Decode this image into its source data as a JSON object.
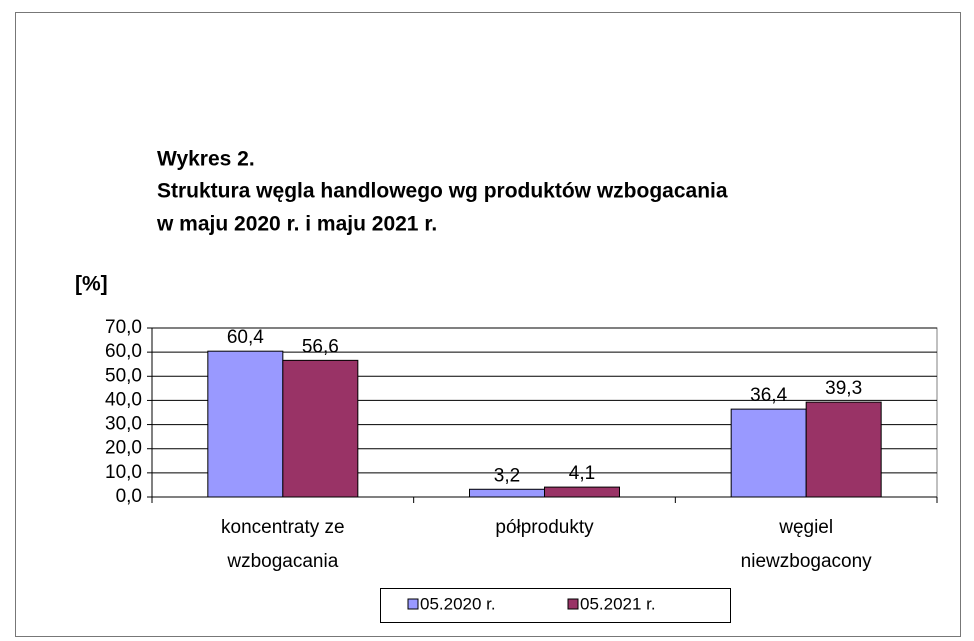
{
  "chart_data": {
    "type": "bar",
    "title": [
      "Wykres 2.",
      "Struktura węgla handlowego wg produktów wzbogacania",
      "w maju 2020 r. i maju 2021 r."
    ],
    "y_label": "[%]",
    "categories": [
      "koncentraty ze wzbogacania",
      "półprodukty",
      "węgiel niewzbogacony"
    ],
    "series": [
      {
        "name": "05.2020 r.",
        "color": "#9999ff",
        "values": [
          60.4,
          3.2,
          36.4
        ],
        "value_labels": [
          "60,4",
          "3,2",
          "36,4"
        ]
      },
      {
        "name": "05.2021 r.",
        "color": "#993366",
        "values": [
          56.6,
          4.1,
          39.3
        ],
        "value_labels": [
          "56,6",
          "4,1",
          "39,3"
        ]
      }
    ],
    "ylim": [
      0,
      70
    ],
    "yticks": [
      {
        "value": 0,
        "label": "0,0"
      },
      {
        "value": 10,
        "label": "10,0"
      },
      {
        "value": 20,
        "label": "20,0"
      },
      {
        "value": 30,
        "label": "30,0"
      },
      {
        "value": 40,
        "label": "40,0"
      },
      {
        "value": 50,
        "label": "50,0"
      },
      {
        "value": 60,
        "label": "60,0"
      },
      {
        "value": 70,
        "label": "70,0"
      }
    ],
    "grid": true,
    "legend": "bottom"
  }
}
